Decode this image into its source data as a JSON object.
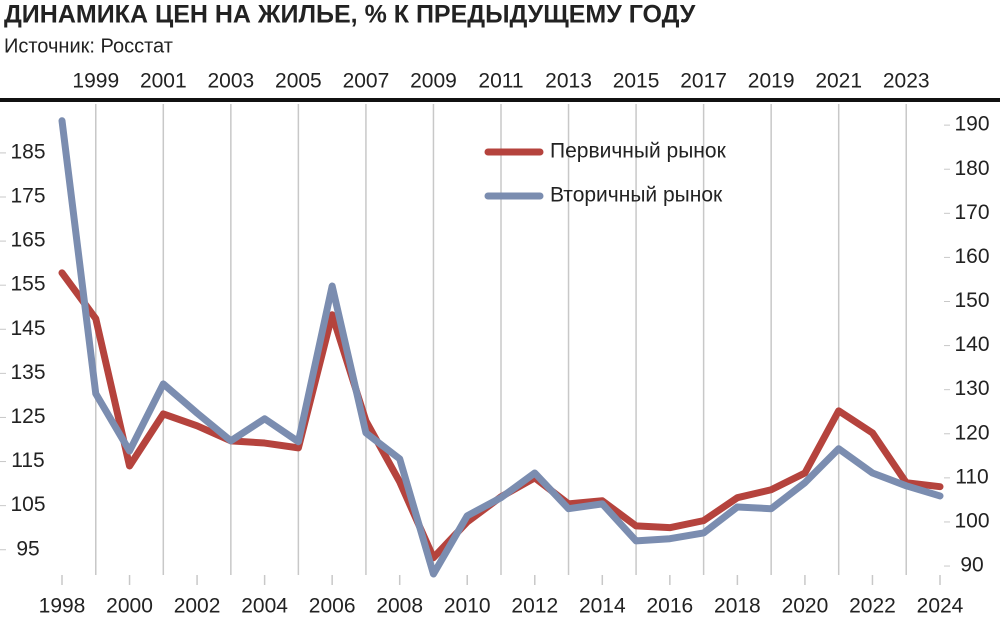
{
  "chart_data": {
    "type": "line",
    "title": "ДИНАМИКА ЦЕН НА ЖИЛЬЕ, % К ПРЕДЫДУЩЕМУ ГОДУ",
    "subtitle": "Источник: Росстат",
    "x": [
      1998,
      1999,
      2000,
      2001,
      2002,
      2003,
      2004,
      2005,
      2006,
      2007,
      2008,
      2009,
      2010,
      2011,
      2012,
      2013,
      2014,
      2015,
      2016,
      2017,
      2018,
      2019,
      2020,
      2021,
      2022,
      2023,
      2024
    ],
    "xlim": [
      1998,
      2024
    ],
    "xticks": [
      1998,
      2000,
      2002,
      2004,
      2006,
      2008,
      2010,
      2012,
      2014,
      2016,
      2018,
      2020,
      2022,
      2024
    ],
    "top_xticks": [
      1999,
      2001,
      2003,
      2005,
      2007,
      2009,
      2011,
      2013,
      2015,
      2017,
      2019,
      2021,
      2023
    ],
    "series": [
      {
        "name": "Первичный рынок",
        "color": "#b5433d",
        "values": [
          157.8,
          147.4,
          114,
          125.8,
          123.1,
          119.7,
          119.2,
          118.1,
          148.3,
          124.2,
          110.4,
          93.2,
          101.3,
          107,
          111.3,
          105.4,
          106.1,
          100.4,
          100,
          101.6,
          106.8,
          108.6,
          112.4,
          126.5,
          121.5,
          110.2,
          109.3
        ]
      },
      {
        "name": "Вторичный рынок",
        "color": "#7b8db0",
        "values": [
          192.3,
          130.4,
          117.4,
          132.6,
          126,
          119.7,
          124.7,
          119.5,
          154.8,
          121.5,
          115.6,
          89.5,
          102.7,
          106.8,
          112.4,
          104.3,
          105.4,
          97,
          97.5,
          98.8,
          104.7,
          104.3,
          110.2,
          117.9,
          112.4,
          109.5,
          107.2
        ]
      }
    ],
    "ylim": [
      87,
      197
    ],
    "yticks": [
      95,
      105,
      115,
      125,
      135,
      145,
      155,
      165,
      175,
      185
    ],
    "y2lim": [
      85.7,
      195.7
    ],
    "y2ticks": [
      90,
      100,
      110,
      120,
      130,
      140,
      150,
      160,
      170,
      180,
      190
    ],
    "grid": true
  }
}
